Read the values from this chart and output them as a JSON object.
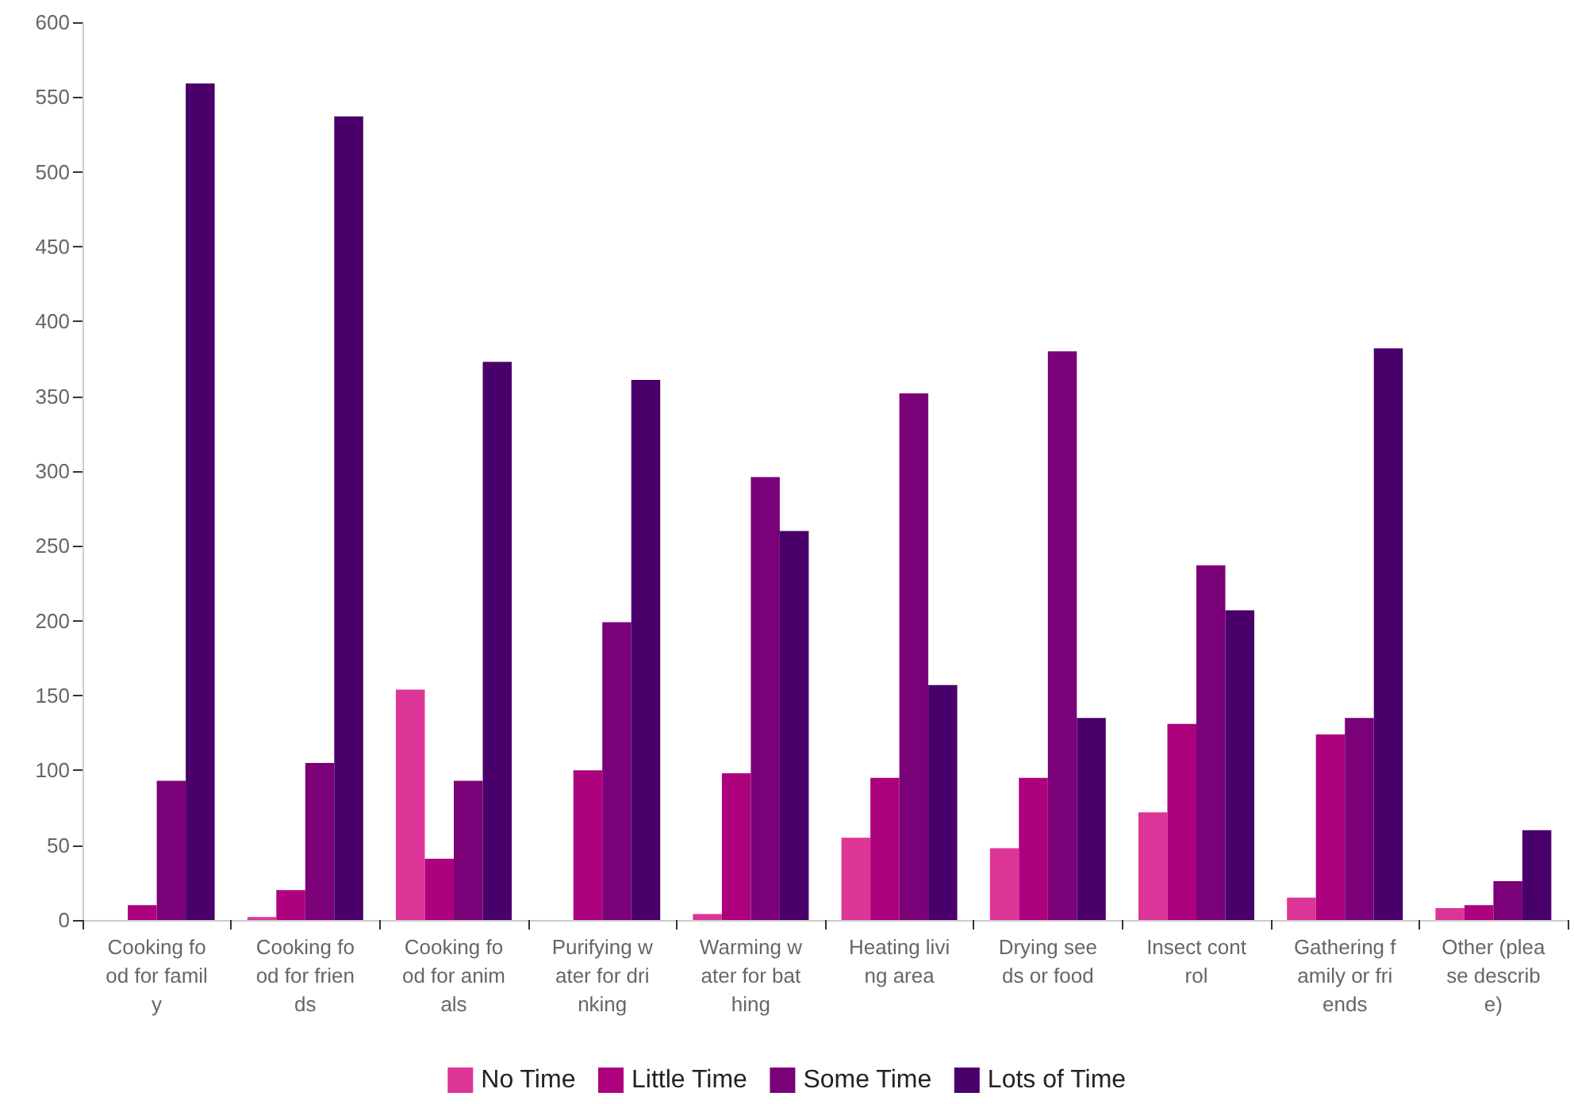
{
  "chart_data": {
    "type": "bar",
    "categories": [
      "Cooking food for family",
      "Cooking food for friends",
      "Cooking food for animals",
      "Purifying water for drinking",
      "Warming water for bathing",
      "Heating living area",
      "Drying seeds or food",
      "Insect control",
      "Gathering family or friends",
      "Other (please describe)"
    ],
    "series": [
      {
        "name": "No Time",
        "color": "#dd3497",
        "values": [
          0,
          2,
          154,
          0,
          4,
          55,
          48,
          72,
          15,
          8
        ]
      },
      {
        "name": "Little Time",
        "color": "#ae017e",
        "values": [
          10,
          20,
          41,
          100,
          98,
          95,
          95,
          131,
          124,
          10
        ]
      },
      {
        "name": "Some Time",
        "color": "#7a0177",
        "values": [
          93,
          105,
          93,
          199,
          296,
          352,
          380,
          237,
          135,
          26
        ]
      },
      {
        "name": "Lots of Time",
        "color": "#49006a",
        "values": [
          559,
          537,
          373,
          361,
          260,
          157,
          135,
          207,
          382,
          60
        ]
      }
    ],
    "ylim": [
      0,
      600
    ],
    "yticks": [
      0,
      50,
      100,
      150,
      200,
      250,
      300,
      350,
      400,
      450,
      500,
      550,
      600
    ],
    "grid": false,
    "legend": "bottom"
  }
}
